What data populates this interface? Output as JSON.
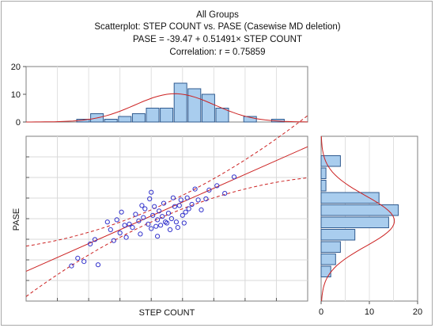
{
  "chart_data": {
    "type": "scatter",
    "title": "All Groups",
    "subtitle": "Scatterplot: STEP COUNT vs. PASE (Casewise MD deletion)",
    "equation": "PASE = -39.47 + 0.51491× STEP COUNT",
    "correlation": "Correlation: r = 0.75859",
    "xlabel": "STEP COUNT",
    "ylabel": "PASE",
    "fit": {
      "intercept": -39.47,
      "slope": 0.51491
    },
    "grid": true,
    "colors": {
      "points": "#3333cc",
      "fit_line": "#cc2222",
      "bar_fill": "#a9cdee",
      "bar_stroke": "#2f5a8f"
    },
    "points": [
      [
        4.9,
        1.2
      ],
      [
        5.3,
        1.9
      ],
      [
        5.7,
        1.6
      ],
      [
        6.4,
        3.6
      ],
      [
        7.2,
        5.2
      ],
      [
        7.4,
        4.5
      ],
      [
        6.6,
        1.3
      ],
      [
        6.1,
        3.2
      ],
      [
        7.8,
        5.4
      ],
      [
        8.1,
        6.1
      ],
      [
        8.3,
        4.9
      ],
      [
        8.0,
        4.2
      ],
      [
        8.6,
        5.0
      ],
      [
        8.8,
        4.7
      ],
      [
        9.0,
        5.9
      ],
      [
        9.2,
        5.3
      ],
      [
        9.3,
        4.1
      ],
      [
        9.5,
        5.6
      ],
      [
        9.6,
        6.4
      ],
      [
        9.8,
        5.0
      ],
      [
        10.0,
        4.6
      ],
      [
        10.1,
        5.8
      ],
      [
        10.2,
        6.6
      ],
      [
        10.3,
        4.8
      ],
      [
        10.4,
        5.4
      ],
      [
        10.5,
        6.2
      ],
      [
        10.6,
        4.9
      ],
      [
        10.7,
        5.7
      ],
      [
        10.8,
        6.9
      ],
      [
        11.0,
        5.1
      ],
      [
        11.1,
        6.0
      ],
      [
        11.2,
        4.5
      ],
      [
        11.3,
        5.5
      ],
      [
        11.4,
        7.4
      ],
      [
        11.5,
        6.6
      ],
      [
        11.6,
        5.2
      ],
      [
        11.8,
        6.7
      ],
      [
        11.9,
        7.2
      ],
      [
        12.0,
        5.8
      ],
      [
        12.2,
        6.1
      ],
      [
        12.3,
        7.4
      ],
      [
        12.4,
        6.4
      ],
      [
        12.6,
        6.8
      ],
      [
        12.8,
        8.2
      ],
      [
        13.0,
        7.2
      ],
      [
        13.2,
        6.3
      ],
      [
        13.5,
        7.3
      ],
      [
        13.7,
        8.1
      ],
      [
        14.2,
        8.5
      ],
      [
        14.7,
        7.8
      ],
      [
        15.3,
        9.3
      ],
      [
        9.9,
        7.3
      ],
      [
        10.9,
        5.2
      ],
      [
        11.7,
        4.7
      ],
      [
        10.4,
        3.9
      ],
      [
        8.4,
        3.8
      ],
      [
        9.4,
        6.7
      ],
      [
        12.1,
        5.1
      ],
      [
        10.0,
        7.9
      ],
      [
        7.6,
        3.5
      ]
    ],
    "x_histogram": {
      "counts": [
        1,
        3,
        1,
        2,
        3,
        5,
        5,
        14,
        12,
        10,
        5,
        0,
        2,
        0,
        1
      ],
      "ticks": [
        0,
        10,
        20
      ]
    },
    "y_histogram": {
      "counts": [
        2,
        3,
        4,
        7,
        14,
        16,
        12,
        1,
        1,
        4
      ],
      "ticks": [
        0,
        10,
        20
      ]
    }
  }
}
